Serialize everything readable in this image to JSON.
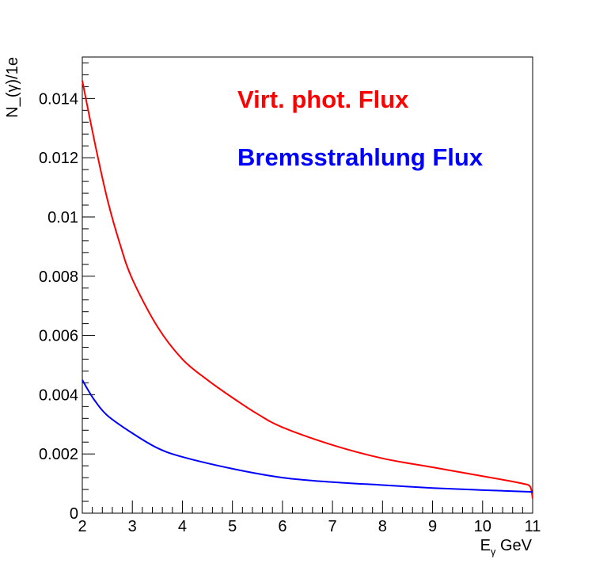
{
  "chart_data": {
    "type": "line",
    "xlabel": {
      "main": "E",
      "sub": "γ",
      "unit": " GeV"
    },
    "ylabel": "N_(γ)/1e",
    "xlim": [
      2,
      11
    ],
    "ylim": [
      0,
      0.0154
    ],
    "x_ticks": [
      2,
      3,
      4,
      5,
      6,
      7,
      8,
      9,
      10,
      11
    ],
    "x_tick_labels": [
      "2",
      "3",
      "4",
      "5",
      "6",
      "7",
      "8",
      "9",
      "10",
      "11"
    ],
    "y_ticks": [
      0,
      0.002,
      0.004,
      0.006,
      0.008,
      0.01,
      0.012,
      0.014
    ],
    "y_tick_labels": [
      "0",
      "0.002",
      "0.004",
      "0.006",
      "0.008",
      "0.01",
      "0.012",
      "0.014"
    ],
    "annotations": [
      {
        "text": "Virt. phot. Flux",
        "color": "#ff0000"
      },
      {
        "text": "Bremsstrahlung Flux",
        "color": "#0000ff"
      }
    ],
    "series": [
      {
        "color": "#ff0000",
        "x": [
          2.0,
          2.25,
          2.5,
          2.75,
          3.0,
          3.5,
          4.0,
          4.5,
          5.0,
          5.5,
          6.0,
          7.0,
          8.0,
          9.0,
          10.0,
          10.5,
          10.8,
          10.95,
          11.0
        ],
        "y": [
          0.0146,
          0.0125,
          0.0106,
          0.0091,
          0.0079,
          0.0063,
          0.0052,
          0.0045,
          0.0039,
          0.00335,
          0.0029,
          0.0023,
          0.00185,
          0.00155,
          0.00125,
          0.0011,
          0.001,
          0.0009,
          0.0005
        ]
      },
      {
        "color": "#0000ff",
        "x": [
          2.0,
          2.1,
          2.25,
          2.5,
          3.0,
          3.5,
          4.0,
          5.0,
          6.0,
          7.0,
          8.0,
          9.0,
          10.0,
          11.0
        ],
        "y": [
          0.0045,
          0.0042,
          0.0038,
          0.0033,
          0.0027,
          0.0022,
          0.0019,
          0.0015,
          0.0012,
          0.00105,
          0.00095,
          0.00085,
          0.00078,
          0.00072
        ]
      }
    ]
  }
}
